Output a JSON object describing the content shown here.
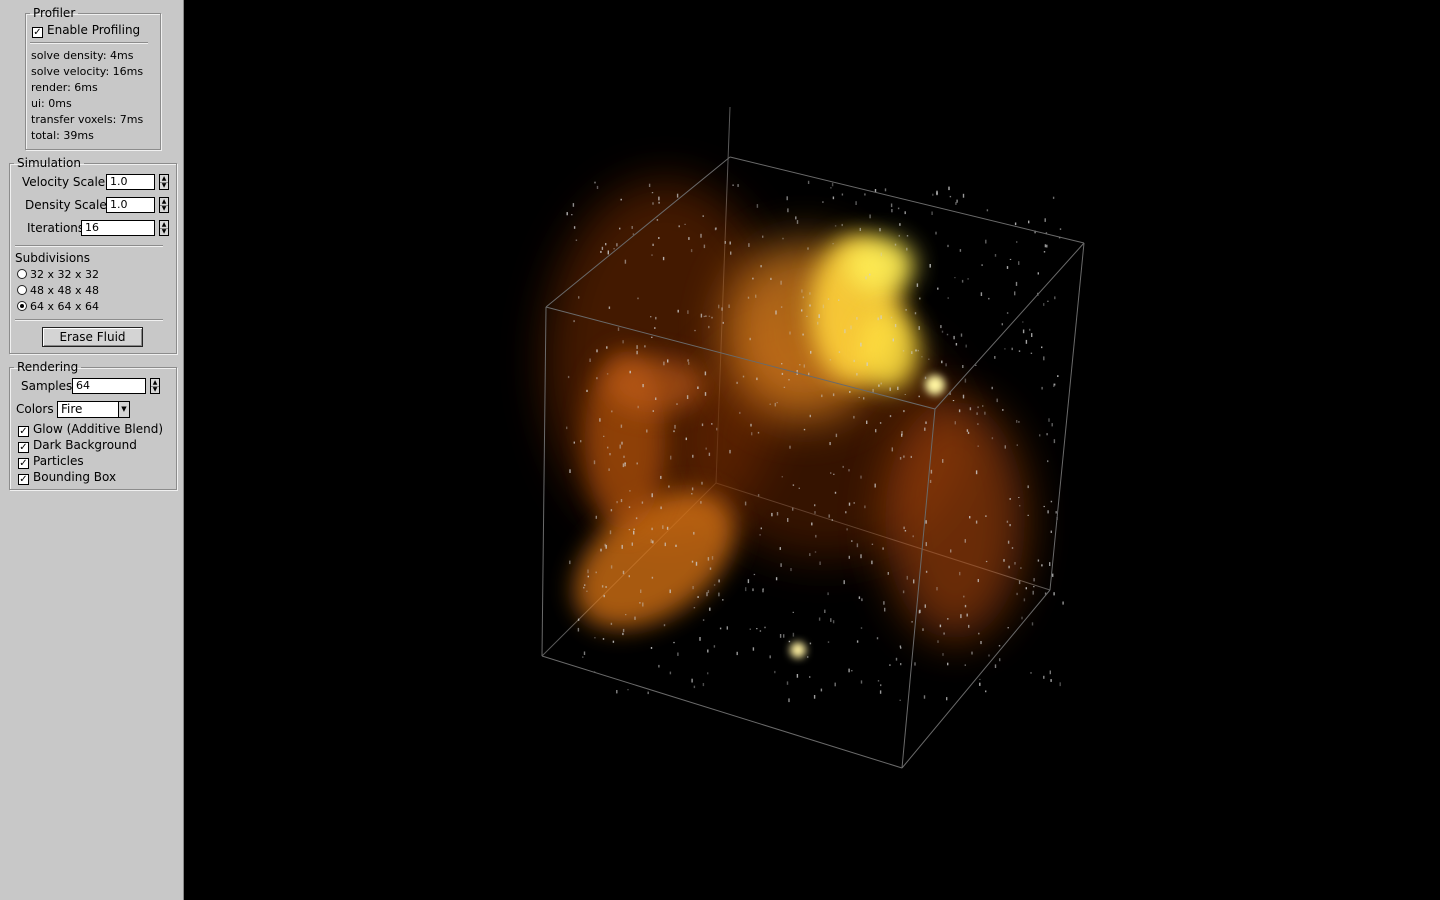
{
  "profiler": {
    "title": "Profiler",
    "enable_label": "Enable Profiling",
    "enabled": true,
    "stats": [
      "solve density: 4ms",
      "solve velocity: 16ms",
      "render: 6ms",
      "ui: 0ms",
      "transfer voxels: 7ms",
      "total: 39ms"
    ]
  },
  "simulation": {
    "title": "Simulation",
    "velocity_label": "Velocity Scale",
    "velocity_value": "1.0",
    "density_label": "Density Scale",
    "density_value": "1.0",
    "iterations_label": "Iterations",
    "iterations_value": "16",
    "subdivisions_label": "Subdivisions",
    "subdivisions": [
      {
        "label": "32 x 32 x 32",
        "selected": false
      },
      {
        "label": "48 x 48 x 48",
        "selected": false
      },
      {
        "label": "64 x 64 x 64",
        "selected": true
      }
    ],
    "erase_label": "Erase Fluid"
  },
  "rendering": {
    "title": "Rendering",
    "samples_label": "Samples",
    "samples_value": "64",
    "colors_label": "Colors",
    "colors_value": "Fire",
    "options": [
      {
        "label": "Glow (Additive Blend)",
        "checked": true
      },
      {
        "label": "Dark Background",
        "checked": true
      },
      {
        "label": "Particles",
        "checked": true
      },
      {
        "label": "Bounding Box",
        "checked": true
      }
    ]
  },
  "colors": {
    "panel_bg": "#c8c8c8",
    "viewport_bg": "#000000",
    "fire_core": "#ffee44",
    "fire_mid": "#ff9922",
    "fire_edge": "#aa4400",
    "box_line": "#6a6a6a",
    "particle": "#cfcfcf"
  }
}
